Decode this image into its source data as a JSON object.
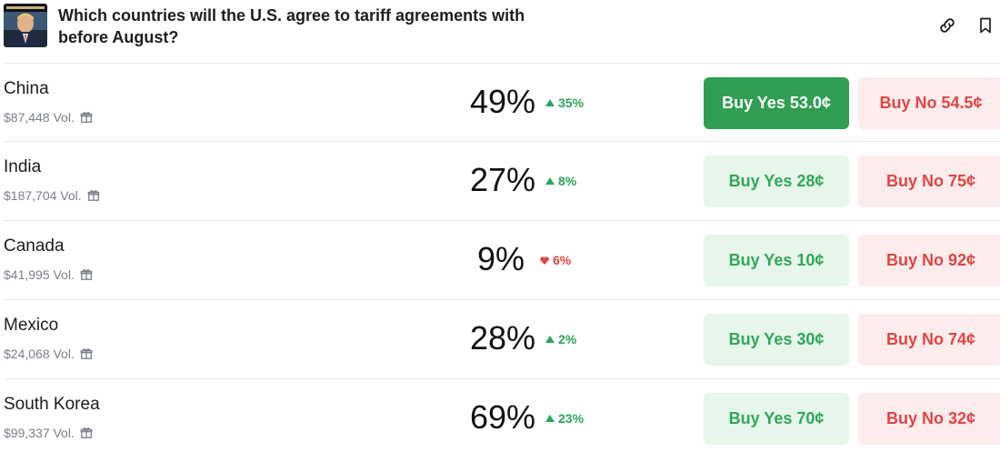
{
  "market": {
    "title": "Which countries will the U.S. agree to tariff agreements with before August?",
    "thumbnail_icon": "book-cover-thumbnail"
  },
  "header_actions": {
    "link_icon": "link-icon",
    "bookmark_icon": "bookmark-icon"
  },
  "colors": {
    "up": "#2aa55a",
    "down": "#e04444",
    "yes_active": "#2f9e52",
    "yes_bg": "#e6f6ea",
    "no_bg": "#fdecec",
    "no_text": "#e04545"
  },
  "outcomes": [
    {
      "name": "China",
      "volume": "$87,448 Vol.",
      "probability": "49%",
      "change": "35%",
      "direction": "up",
      "buy_yes": "Buy Yes 53.0¢",
      "buy_no": "Buy No 54.5¢",
      "yes_selected": true
    },
    {
      "name": "India",
      "volume": "$187,704 Vol.",
      "probability": "27%",
      "change": "8%",
      "direction": "up",
      "buy_yes": "Buy Yes 28¢",
      "buy_no": "Buy No 75¢",
      "yes_selected": false
    },
    {
      "name": "Canada",
      "volume": "$41,995 Vol.",
      "probability": "9%",
      "change": "6%",
      "direction": "down",
      "buy_yes": "Buy Yes 10¢",
      "buy_no": "Buy No 92¢",
      "yes_selected": false
    },
    {
      "name": "Mexico",
      "volume": "$24,068 Vol.",
      "probability": "28%",
      "change": "2%",
      "direction": "up",
      "buy_yes": "Buy Yes 30¢",
      "buy_no": "Buy No 74¢",
      "yes_selected": false
    },
    {
      "name": "South Korea",
      "volume": "$99,337 Vol.",
      "probability": "69%",
      "change": "23%",
      "direction": "up",
      "buy_yes": "Buy Yes 70¢",
      "buy_no": "Buy No 32¢",
      "yes_selected": false
    }
  ]
}
